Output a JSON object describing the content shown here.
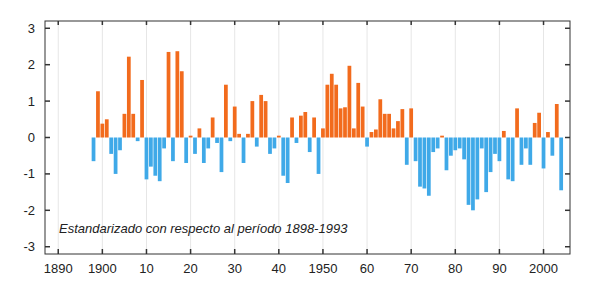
{
  "chart_data": {
    "type": "bar",
    "annotations": [
      "Estandarizado con respecto al período 1898-1993"
    ],
    "x": [
      1898,
      1899,
      1900,
      1901,
      1902,
      1903,
      1904,
      1905,
      1906,
      1907,
      1908,
      1909,
      1910,
      1911,
      1912,
      1913,
      1914,
      1915,
      1916,
      1917,
      1918,
      1919,
      1920,
      1921,
      1922,
      1923,
      1924,
      1925,
      1926,
      1927,
      1928,
      1929,
      1930,
      1931,
      1932,
      1933,
      1934,
      1935,
      1936,
      1937,
      1938,
      1939,
      1940,
      1941,
      1942,
      1943,
      1944,
      1945,
      1946,
      1947,
      1948,
      1949,
      1950,
      1951,
      1952,
      1953,
      1954,
      1955,
      1956,
      1957,
      1958,
      1959,
      1960,
      1961,
      1962,
      1963,
      1964,
      1965,
      1966,
      1967,
      1968,
      1969,
      1970,
      1971,
      1972,
      1973,
      1974,
      1975,
      1976,
      1977,
      1978,
      1979,
      1980,
      1981,
      1982,
      1983,
      1984,
      1985,
      1986,
      1987,
      1988,
      1989,
      1990,
      1991,
      1992,
      1993,
      1994,
      1995,
      1996,
      1997,
      1998,
      1999,
      2000,
      2001,
      2002,
      2003,
      2004
    ],
    "values": [
      -0.65,
      1.27,
      0.38,
      0.5,
      -0.45,
      -1.0,
      -0.35,
      0.65,
      2.22,
      0.65,
      -0.1,
      1.58,
      -1.15,
      -0.8,
      -1.05,
      -1.2,
      -0.3,
      2.35,
      -0.65,
      2.37,
      1.82,
      -0.7,
      0.05,
      -0.45,
      0.25,
      -0.7,
      -0.3,
      0.55,
      -0.15,
      -0.95,
      1.45,
      -0.1,
      0.85,
      0.1,
      -0.7,
      0.1,
      1.0,
      -0.25,
      1.17,
      1.0,
      -0.45,
      -0.3,
      0.05,
      -1.05,
      -1.25,
      0.55,
      -0.15,
      0.6,
      0.7,
      -0.4,
      0.55,
      -1.0,
      0.25,
      1.45,
      1.75,
      1.45,
      0.8,
      0.83,
      1.97,
      0.25,
      1.5,
      0.85,
      -0.25,
      0.15,
      0.22,
      1.05,
      0.65,
      0.65,
      0.25,
      0.45,
      0.78,
      -0.75,
      0.8,
      -0.65,
      -1.35,
      -1.4,
      -1.6,
      -0.4,
      -0.3,
      0.05,
      -0.9,
      -0.5,
      -0.35,
      -0.3,
      -0.6,
      -1.85,
      -2.0,
      -1.7,
      -0.3,
      -1.5,
      -0.95,
      -0.45,
      -0.65,
      0.18,
      -1.15,
      -1.2,
      0.8,
      -0.75,
      -0.3,
      -0.75,
      0.4,
      0.68,
      -0.85,
      0.15,
      -0.5,
      0.92,
      -1.45
    ],
    "colors": [
      "#3fa9e8",
      "#f26b1d",
      "#f26b1d",
      "#f26b1d",
      "#3fa9e8",
      "#3fa9e8",
      "#3fa9e8",
      "#f26b1d",
      "#f26b1d",
      "#f26b1d",
      "#3fa9e8",
      "#f26b1d",
      "#3fa9e8",
      "#3fa9e8",
      "#3fa9e8",
      "#3fa9e8",
      "#3fa9e8",
      "#f26b1d",
      "#3fa9e8",
      "#f26b1d",
      "#f26b1d",
      "#3fa9e8",
      "#f26b1d",
      "#3fa9e8",
      "#f26b1d",
      "#3fa9e8",
      "#3fa9e8",
      "#f26b1d",
      "#3fa9e8",
      "#3fa9e8",
      "#f26b1d",
      "#3fa9e8",
      "#f26b1d",
      "#f26b1d",
      "#3fa9e8",
      "#f26b1d",
      "#f26b1d",
      "#3fa9e8",
      "#f26b1d",
      "#f26b1d",
      "#3fa9e8",
      "#3fa9e8",
      "#f26b1d",
      "#3fa9e8",
      "#3fa9e8",
      "#f26b1d",
      "#3fa9e8",
      "#f26b1d",
      "#f26b1d",
      "#3fa9e8",
      "#f26b1d",
      "#3fa9e8",
      "#f26b1d",
      "#f26b1d",
      "#f26b1d",
      "#f26b1d",
      "#f26b1d",
      "#f26b1d",
      "#f26b1d",
      "#f26b1d",
      "#f26b1d",
      "#f26b1d",
      "#3fa9e8",
      "#f26b1d",
      "#f26b1d",
      "#f26b1d",
      "#f26b1d",
      "#f26b1d",
      "#f26b1d",
      "#f26b1d",
      "#f26b1d",
      "#3fa9e8",
      "#f26b1d",
      "#3fa9e8",
      "#3fa9e8",
      "#3fa9e8",
      "#3fa9e8",
      "#3fa9e8",
      "#3fa9e8",
      "#f26b1d",
      "#3fa9e8",
      "#3fa9e8",
      "#3fa9e8",
      "#3fa9e8",
      "#3fa9e8",
      "#3fa9e8",
      "#3fa9e8",
      "#3fa9e8",
      "#3fa9e8",
      "#3fa9e8",
      "#3fa9e8",
      "#3fa9e8",
      "#3fa9e8",
      "#f26b1d",
      "#3fa9e8",
      "#3fa9e8",
      "#f26b1d",
      "#3fa9e8",
      "#3fa9e8",
      "#3fa9e8",
      "#f26b1d",
      "#f26b1d",
      "#3fa9e8",
      "#f26b1d",
      "#3fa9e8",
      "#f26b1d",
      "#3fa9e8"
    ],
    "xlim": [
      1887,
      2006
    ],
    "xticks": [
      1890,
      1900,
      {
        "value": 1910,
        "label": "10"
      },
      {
        "value": 1920,
        "label": "20"
      },
      {
        "value": 1930,
        "label": "30"
      },
      {
        "value": 1940,
        "label": "40"
      },
      1950,
      {
        "value": 1960,
        "label": "60"
      },
      {
        "value": 1970,
        "label": "70"
      },
      {
        "value": 1980,
        "label": "80"
      },
      {
        "value": 1990,
        "label": "90"
      },
      2000
    ],
    "ylim": [
      -3.2,
      3.2
    ],
    "yticks": [
      -3,
      -2,
      -1,
      0,
      1,
      2,
      3
    ],
    "grid": true
  }
}
